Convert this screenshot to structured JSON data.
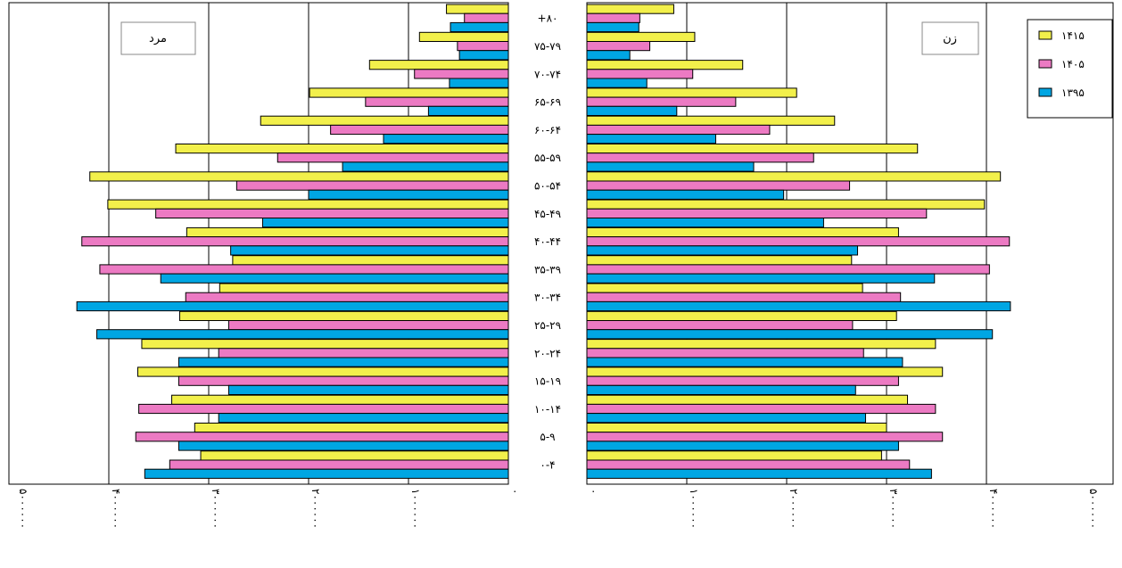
{
  "chart_data": {
    "type": "bar",
    "orientation": "horizontal",
    "layout": "population-pyramid",
    "left_panel_label": "مرد",
    "right_panel_label": "زن",
    "categories": [
      "۰-۴",
      "۵-۹",
      "۱۰-۱۴",
      "۱۵-۱۹",
      "۲۰-۲۴",
      "۲۵-۲۹",
      "۳۰-۳۴",
      "۳۵-۳۹",
      "۴۰-۴۴",
      "۴۵-۴۹",
      "۵۰-۵۴",
      "۵۵-۵۹",
      "۶۰-۶۴",
      "۶۵-۶۹",
      "۷۰-۷۴",
      "۷۵-۷۹",
      "+۸۰"
    ],
    "series": [
      {
        "name": "۱۳۹۵",
        "color": "#00a6e3",
        "male": [
          3640000,
          3300000,
          2900000,
          2800000,
          3300000,
          4120000,
          4320000,
          3480000,
          2780000,
          2460000,
          2000000,
          1660000,
          1250000,
          800000,
          590000,
          490000,
          580000
        ],
        "female": [
          3450000,
          3120000,
          2790000,
          2690000,
          3160000,
          4060000,
          4240000,
          3480000,
          2710000,
          2370000,
          1970000,
          1670000,
          1290000,
          900000,
          600000,
          430000,
          520000
        ]
      },
      {
        "name": "۱۴۰۵",
        "color": "#ec7ac3",
        "male": [
          3390000,
          3730000,
          3700000,
          3300000,
          2900000,
          2800000,
          3230000,
          4090000,
          4270000,
          3530000,
          2720000,
          2310000,
          1780000,
          1430000,
          940000,
          510000,
          440000
        ],
        "female": [
          3230000,
          3560000,
          3490000,
          3120000,
          2770000,
          2660000,
          3140000,
          4030000,
          4230000,
          3400000,
          2630000,
          2270000,
          1830000,
          1490000,
          1060000,
          630000,
          530000
        ]
      },
      {
        "name": "۱۴۱۵",
        "color": "#f2f04b",
        "male": [
          3080000,
          3140000,
          3370000,
          3710000,
          3670000,
          3290000,
          2890000,
          2760000,
          3220000,
          4010000,
          4190000,
          3330000,
          2480000,
          1990000,
          1390000,
          890000,
          620000
        ],
        "female": [
          2950000,
          3000000,
          3210000,
          3560000,
          3490000,
          3100000,
          2760000,
          2650000,
          3120000,
          3980000,
          4140000,
          3310000,
          2480000,
          2100000,
          1560000,
          1080000,
          870000
        ]
      }
    ],
    "legend_order": [
      "۱۴۱۵",
      "۱۴۰۵",
      "۱۳۹۵"
    ],
    "legend_position": "top-right",
    "x_ticks": [
      "۰",
      "۱۰۰۰۰۰۰",
      "۲۰۰۰۰۰۰",
      "۳۰۰۰۰۰۰",
      "۴۰۰۰۰۰۰",
      "۵۰۰۰۰۰۰"
    ],
    "x_tick_values": [
      0,
      1000000,
      2000000,
      3000000,
      4000000,
      5000000
    ],
    "xlim": [
      0,
      5000000
    ],
    "grid": "vertical"
  }
}
